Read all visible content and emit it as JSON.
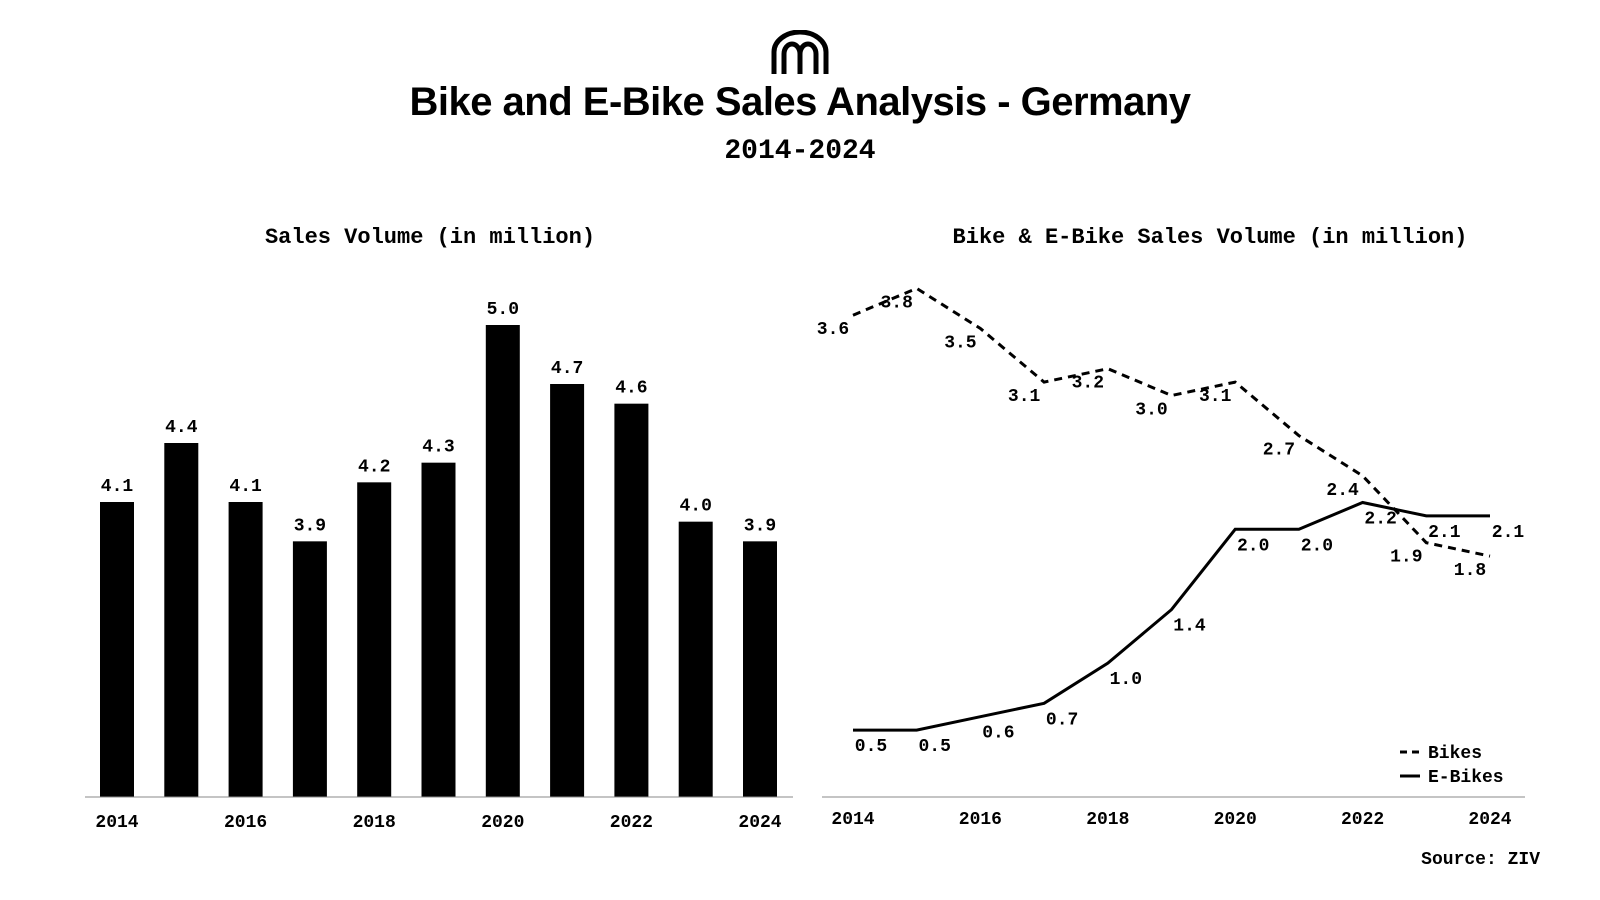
{
  "header": {
    "logo_icon": "brand-logo-icon",
    "title": "Bike and E-Bike Sales Analysis - Germany",
    "subtitle": "2014-2024"
  },
  "source": "Source: ZIV",
  "colors": {
    "ink": "#000000",
    "axis": "#888888",
    "background": "#ffffff"
  },
  "chart_data": [
    {
      "type": "bar",
      "title": "Sales Volume (in million)",
      "categories": [
        "2014",
        "2015",
        "2016",
        "2017",
        "2018",
        "2019",
        "2020",
        "2021",
        "2022",
        "2023",
        "2024"
      ],
      "values": [
        4.1,
        4.4,
        4.1,
        3.9,
        4.2,
        4.3,
        5.0,
        4.7,
        4.6,
        4.0,
        3.9
      ],
      "data_labels": [
        "4.1",
        "4.4",
        "4.1",
        "3.9",
        "4.2",
        "4.3",
        "5.0",
        "4.7",
        "4.6",
        "4.0",
        "3.9"
      ],
      "x_tick_labels": [
        "2014",
        "2016",
        "2018",
        "2020",
        "2022",
        "2024"
      ],
      "xlabel": "",
      "ylabel": "",
      "ylim": [
        2.6,
        5.0
      ],
      "grid": false
    },
    {
      "type": "line",
      "title": "Bike & E-Bike Sales Volume (in million)",
      "x": [
        2014,
        2015,
        2016,
        2017,
        2018,
        2019,
        2020,
        2021,
        2022,
        2023,
        2024
      ],
      "series": [
        {
          "name": "Bikes",
          "style": "dashed",
          "values": [
            3.6,
            3.8,
            3.5,
            3.1,
            3.2,
            3.0,
            3.1,
            2.7,
            2.4,
            1.9,
            1.8
          ],
          "labels": [
            "3.6",
            "3.8",
            "3.5",
            "3.1",
            "3.2",
            "3.0",
            "3.1",
            "2.7",
            "2.4",
            "1.9",
            "1.8"
          ]
        },
        {
          "name": "E-Bikes",
          "style": "solid",
          "values": [
            0.5,
            0.5,
            0.6,
            0.7,
            1.0,
            1.4,
            2.0,
            2.0,
            2.2,
            2.1,
            2.1
          ],
          "labels": [
            "0.5",
            "0.5",
            "0.6",
            "0.7",
            "1.0",
            "1.4",
            "2.0",
            "2.0",
            "2.2",
            "2.1",
            "2.1"
          ]
        }
      ],
      "x_tick_labels": [
        "2014",
        "2016",
        "2018",
        "2020",
        "2022",
        "2024"
      ],
      "xlabel": "",
      "ylabel": "",
      "ylim": [
        0,
        3.9
      ],
      "legend": "bottom-right",
      "grid": false
    }
  ]
}
